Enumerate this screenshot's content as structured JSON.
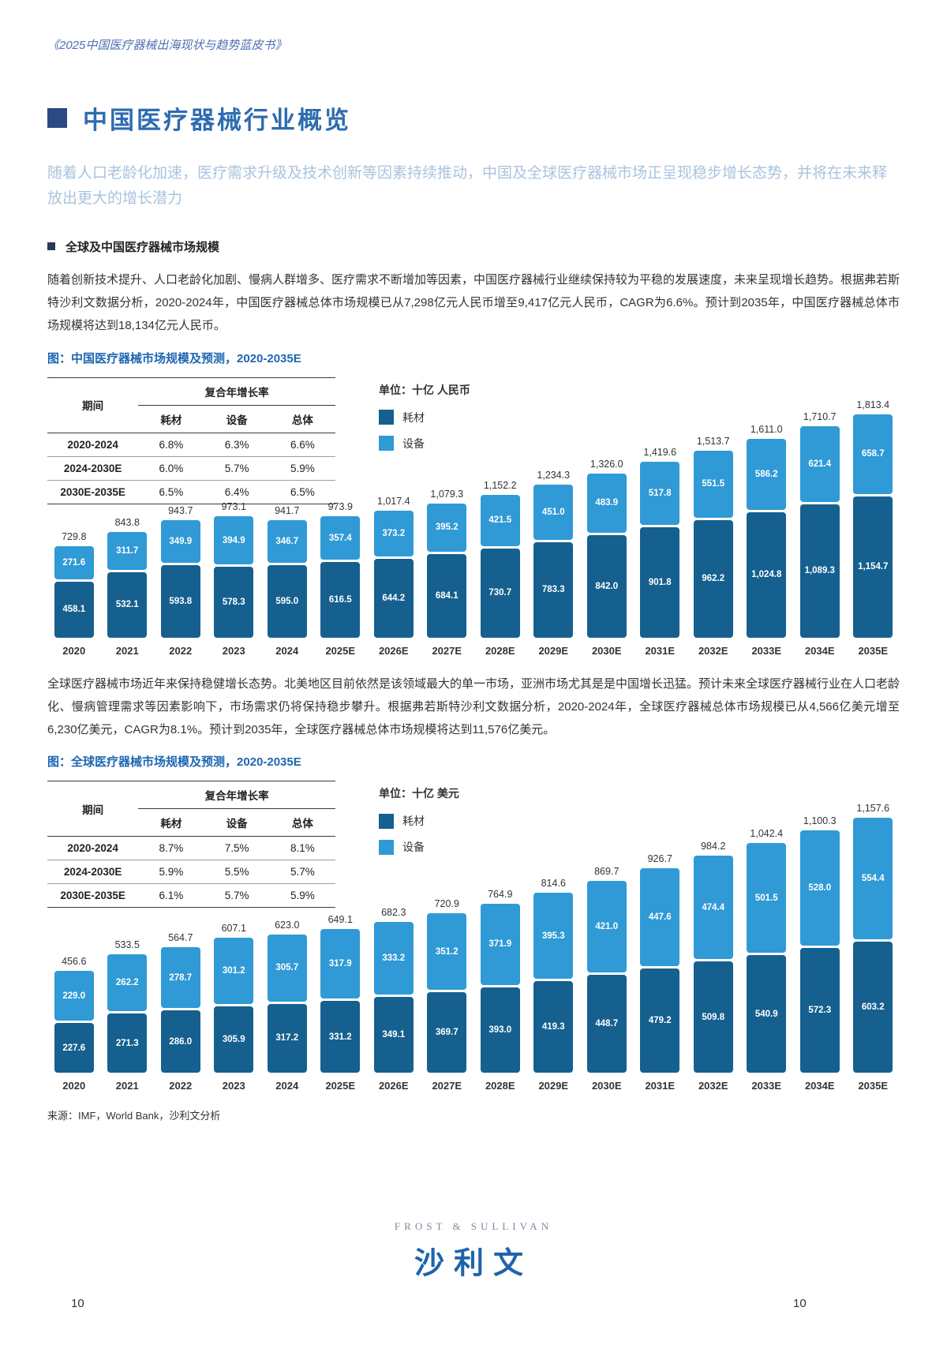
{
  "page": {
    "header": "《2025中国医疗器械出海现状与趋势蓝皮书》",
    "title": "中国医疗器械行业概览",
    "subtitle": "随着人口老龄化加速，医疗需求升级及技术创新等因素持续推动，中国及全球医疗器械市场正呈现稳步增长态势，并将在未来释放出更大的增长潜力",
    "section_heading": "全球及中国医疗器械市场规模",
    "para1": "随着创新技术提升、人口老龄化加剧、慢病人群增多、医疗需求不断增加等因素，中国医疗器械行业继续保持较为平稳的发展速度，未来呈现增长趋势。根据弗若斯特沙利文数据分析，2020-2024年，中国医疗器械总体市场规模已从7,298亿元人民币增至9,417亿元人民币，CAGR为6.6%。预计到2035年，中国医疗器械总体市场规模将达到18,134亿元人民币。",
    "para2": "全球医疗器械市场近年来保持稳健增长态势。北美地区目前依然是该领域最大的单一市场，亚洲市场尤其是是中国增长迅猛。预计未来全球医疗器械行业在人口老龄化、慢病管理需求等因素影响下，市场需求仍将保持稳步攀升。根据弗若斯特沙利文数据分析，2020-2024年，全球医疗器械总体市场规模已从4,566亿美元增至6,230亿美元，CAGR为8.1%。预计到2035年，全球医疗器械总体市场规模将达到11,576亿美元。",
    "source": "来源：IMF，World Bank，沙利文分析",
    "page_number_left": "10",
    "page_number_right": "10",
    "footer_logo_top": "FROST & SULLIVAN",
    "footer_logo_main": "沙利文"
  },
  "colors": {
    "consumables_dark_blue": "#15608f",
    "equipment_light_blue": "#2f9ad6",
    "caption_blue": "#1e66b0",
    "title_blue": "#2e6cb0"
  },
  "chart_data": [
    {
      "type": "bar",
      "stacked": true,
      "title": "图：中国医疗器械市场规模及预测，2020-2035E",
      "unit_label": "单位：十亿 人民币",
      "grid": false,
      "legend_position": "top-middle",
      "categories": [
        "2020",
        "2021",
        "2022",
        "2023",
        "2024",
        "2025E",
        "2026E",
        "2027E",
        "2028E",
        "2029E",
        "2030E",
        "2031E",
        "2032E",
        "2033E",
        "2034E",
        "2035E"
      ],
      "series": [
        {
          "name": "耗材",
          "color": "#15608f",
          "values": [
            458.1,
            532.1,
            593.8,
            578.3,
            595.0,
            616.5,
            644.2,
            684.1,
            730.7,
            783.3,
            842.0,
            901.8,
            962.2,
            1024.8,
            1089.3,
            1154.7
          ]
        },
        {
          "name": "设备",
          "color": "#2f9ad6",
          "values": [
            271.6,
            311.7,
            349.9,
            394.9,
            346.7,
            357.4,
            373.2,
            395.2,
            421.5,
            451.0,
            483.9,
            517.8,
            551.5,
            586.2,
            621.4,
            658.7
          ]
        }
      ],
      "totals": [
        729.8,
        843.8,
        943.7,
        973.1,
        941.7,
        973.9,
        1017.4,
        1079.3,
        1152.2,
        1234.3,
        1326.0,
        1419.6,
        1513.7,
        1611.0,
        1710.7,
        1813.4
      ],
      "cagr_table": {
        "col1_header": "期间",
        "group_header": "复合年增长率",
        "columns": [
          "耗材",
          "设备",
          "总体"
        ],
        "rows": [
          {
            "period": "2020-2024",
            "values": [
              "6.8%",
              "6.3%",
              "6.6%"
            ]
          },
          {
            "period": "2024-2030E",
            "values": [
              "6.0%",
              "5.7%",
              "5.9%"
            ]
          },
          {
            "period": "2030E-2035E",
            "values": [
              "6.5%",
              "6.4%",
              "6.5%"
            ]
          }
        ]
      }
    },
    {
      "type": "bar",
      "stacked": true,
      "title": "图：全球医疗器械市场规模及预测，2020-2035E",
      "unit_label": "单位：十亿 美元",
      "grid": false,
      "legend_position": "top-middle",
      "categories": [
        "2020",
        "2021",
        "2022",
        "2023",
        "2024",
        "2025E",
        "2026E",
        "2027E",
        "2028E",
        "2029E",
        "2030E",
        "2031E",
        "2032E",
        "2033E",
        "2034E",
        "2035E"
      ],
      "series": [
        {
          "name": "耗材",
          "color": "#15608f",
          "values": [
            227.6,
            271.3,
            286.0,
            305.9,
            317.2,
            331.2,
            349.1,
            369.7,
            393.0,
            419.3,
            448.7,
            479.2,
            509.8,
            540.9,
            572.3,
            603.2
          ]
        },
        {
          "name": "设备",
          "color": "#2f9ad6",
          "values": [
            229.0,
            262.2,
            278.7,
            301.2,
            305.7,
            317.9,
            333.2,
            351.2,
            371.9,
            395.3,
            421.0,
            447.6,
            474.4,
            501.5,
            528.0,
            554.4
          ]
        }
      ],
      "totals": [
        456.6,
        533.5,
        564.7,
        607.1,
        623.0,
        649.1,
        682.3,
        720.9,
        764.9,
        814.6,
        869.7,
        926.7,
        984.2,
        1042.4,
        1100.3,
        1157.6
      ],
      "cagr_table": {
        "col1_header": "期间",
        "group_header": "复合年增长率",
        "columns": [
          "耗材",
          "设备",
          "总体"
        ],
        "rows": [
          {
            "period": "2020-2024",
            "values": [
              "8.7%",
              "7.5%",
              "8.1%"
            ]
          },
          {
            "period": "2024-2030E",
            "values": [
              "5.9%",
              "5.5%",
              "5.7%"
            ]
          },
          {
            "period": "2030E-2035E",
            "values": [
              "6.1%",
              "5.7%",
              "5.9%"
            ]
          }
        ]
      }
    }
  ]
}
